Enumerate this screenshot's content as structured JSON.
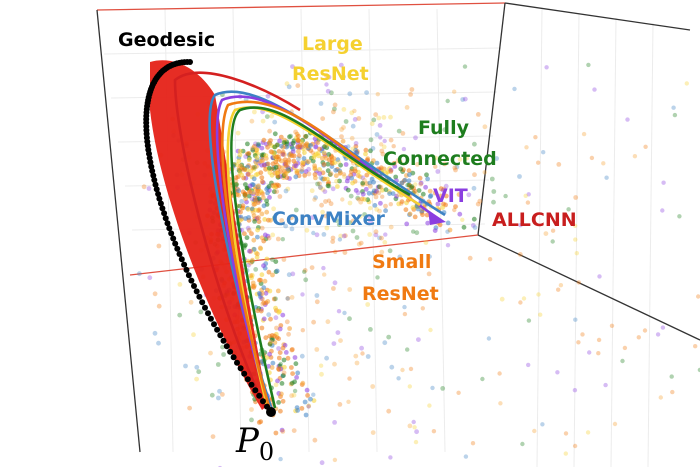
{
  "chart_data": {
    "type": "scatter3d",
    "title": "",
    "grid": true,
    "series": [
      {
        "name": "Geodesic",
        "color": "#000000"
      },
      {
        "name": "Large ResNet",
        "color": "#f5d130"
      },
      {
        "name": "Fully Connected",
        "color": "#1e7d1e"
      },
      {
        "name": "VIT",
        "color": "#8a3ee0"
      },
      {
        "name": "ConvMixer",
        "color": "#3d82c4"
      },
      {
        "name": "ALLCNN",
        "color": "#d42020"
      },
      {
        "name": "Small ResNet",
        "color": "#f07a12"
      }
    ],
    "annotations": {
      "start_point": "P",
      "start_sub": "0"
    }
  },
  "labels": {
    "geodesic": "Geodesic",
    "large_resnet_1": "Large",
    "large_resnet_2": "ResNet",
    "fully_connected_1": "Fully",
    "fully_connected_2": "Connected",
    "vit": "VIT",
    "convmixer": "ConvMixer",
    "allcnn": "ALLCNN",
    "small_resnet_1": "Small",
    "small_resnet_2": "ResNet"
  }
}
